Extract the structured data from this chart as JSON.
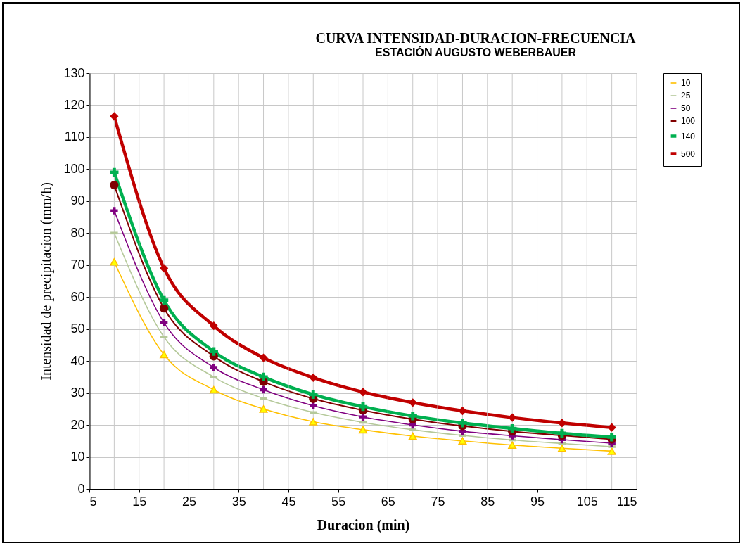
{
  "chart_data": {
    "type": "line",
    "title": "CURVA INTENSIDAD-DURACION-FRECUENCIA",
    "subtitle": "ESTACIÓN AUGUSTO WEBERBAUER",
    "xlabel": "Duracion (min)",
    "ylabel": "Intensidad de precipitacion (mm/h)",
    "x": [
      10,
      20,
      30,
      40,
      50,
      60,
      70,
      80,
      90,
      100,
      110
    ],
    "series": [
      {
        "name": "10",
        "color": "#ffc000",
        "marker": "triangle",
        "values": [
          71,
          42,
          31,
          25,
          21,
          18.5,
          16.5,
          15,
          13.7,
          12.7,
          11.8
        ]
      },
      {
        "name": "25",
        "color": "#b5c99a",
        "marker": "square",
        "values": [
          80,
          47.5,
          35,
          28.3,
          23.9,
          20.8,
          18.5,
          16.7,
          15.3,
          14.2,
          13.2
        ]
      },
      {
        "name": "50",
        "color": "#800080",
        "marker": "cross",
        "values": [
          87,
          52,
          38,
          31,
          26,
          22.5,
          20,
          18,
          16.6,
          15.4,
          14.3
        ]
      },
      {
        "name": "100",
        "color": "#800000",
        "marker": "circle",
        "values": [
          95,
          56.5,
          41.5,
          33.5,
          28.2,
          24.6,
          21.8,
          19.7,
          18,
          16.7,
          15.5
        ]
      },
      {
        "name": "140",
        "color": "#00b050",
        "marker": "cross",
        "values": [
          99,
          59,
          43,
          35,
          29.5,
          25.7,
          22.8,
          20.6,
          18.9,
          17.4,
          16.2
        ]
      },
      {
        "name": "500",
        "color": "#c00000",
        "marker": "diamond",
        "values": [
          116.5,
          69,
          51,
          41,
          34.8,
          30.3,
          27,
          24.4,
          22.3,
          20.6,
          19.2
        ]
      }
    ],
    "xlim": [
      5,
      115
    ],
    "xticks": [
      5,
      {
        "value": 10,
        "label": null
      },
      15,
      {
        "value": 20,
        "label": null
      },
      25,
      {
        "value": 30,
        "label": null
      },
      35,
      {
        "value": 40,
        "label": null
      },
      45,
      {
        "value": 50,
        "label": null
      },
      55,
      {
        "value": 60,
        "label": null
      },
      65,
      {
        "value": 70,
        "label": null
      },
      75,
      {
        "value": 80,
        "label": null
      },
      85,
      {
        "value": 90,
        "label": null
      },
      95,
      {
        "value": 100,
        "label": null
      },
      105,
      {
        "value": 110,
        "label": null
      },
      115
    ],
    "ylim": [
      0,
      130
    ],
    "yticks": [
      0,
      10,
      20,
      30,
      40,
      50,
      60,
      70,
      80,
      90,
      100,
      110,
      120,
      130
    ],
    "grid": true,
    "legend": "right",
    "line_style": "solid"
  }
}
